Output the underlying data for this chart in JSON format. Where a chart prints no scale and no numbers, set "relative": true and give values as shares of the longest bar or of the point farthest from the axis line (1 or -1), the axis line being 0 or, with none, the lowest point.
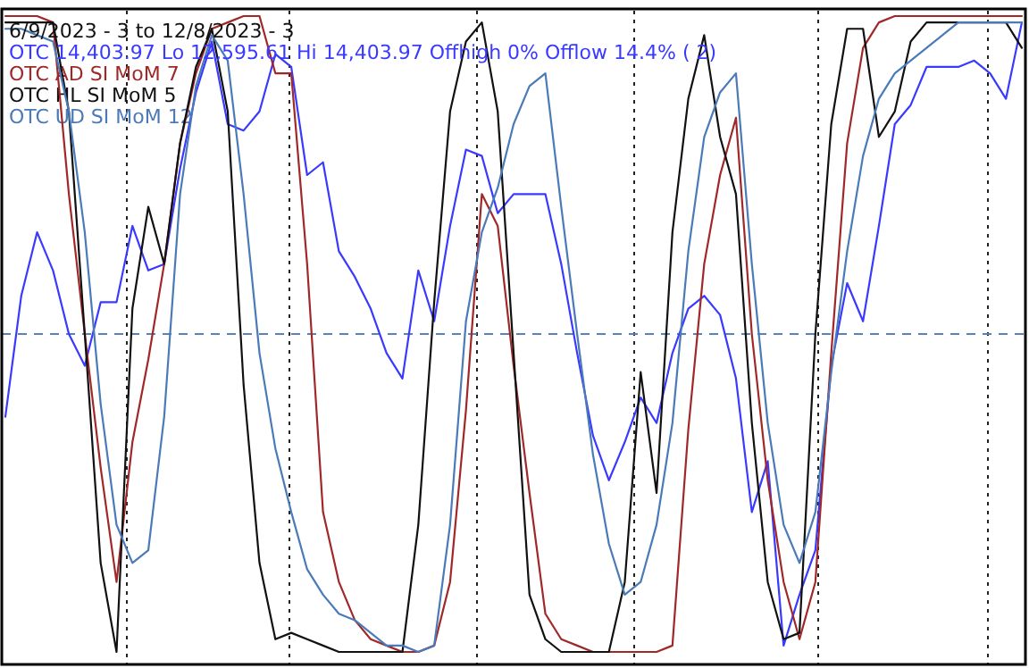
{
  "chart_data": {
    "type": "line",
    "title": "6/9/2023 - 3 to 12/8/2023 - 3",
    "relative": true,
    "legend": "top left",
    "grid": "x",
    "categories": [
      null,
      null,
      null,
      null,
      null,
      null,
      null,
      null,
      null,
      null,
      null,
      null,
      null,
      null,
      null,
      null,
      null,
      null,
      null,
      null,
      null,
      null,
      null,
      null,
      null,
      null,
      null,
      null,
      null,
      null,
      null,
      null,
      null,
      null,
      null,
      null,
      null,
      null,
      null,
      null,
      null,
      null,
      null,
      null,
      null,
      null,
      null,
      null,
      null,
      null,
      null,
      null,
      null,
      null,
      null,
      null,
      null,
      null,
      null,
      null,
      null,
      null,
      null,
      null,
      null
    ],
    "ref_lines": [
      {
        "axis": "y",
        "value": 0.5,
        "color": "#5a82b8",
        "line_style": "dashed"
      }
    ],
    "series": [
      {
        "name": "OTC 14,403.97 Lo 12,595.61 Hi 14,403.97 Offhigh 0% Offlow 14.4% ( 2)",
        "color": "#3a3aff",
        "values": [
          0.37,
          0.56,
          0.66,
          0.6,
          0.5,
          0.45,
          0.55,
          0.55,
          0.67,
          0.6,
          0.61,
          0.76,
          0.88,
          0.96,
          0.83,
          0.82,
          0.85,
          0.94,
          0.92,
          0.75,
          0.77,
          0.63,
          0.59,
          0.54,
          0.47,
          0.43,
          0.6,
          0.52,
          0.67,
          0.79,
          0.78,
          0.69,
          0.72,
          0.72,
          0.72,
          0.61,
          0.47,
          0.34,
          0.27,
          0.33,
          0.4,
          0.36,
          0.47,
          0.54,
          0.56,
          0.53,
          0.43,
          0.22,
          0.3,
          0.01,
          0.09,
          0.16,
          0.45,
          0.58,
          0.52,
          0.67,
          0.83,
          0.86,
          0.92,
          0.92,
          0.92,
          0.93,
          0.91,
          0.87,
          0.99
        ]
      },
      {
        "name": "OTC AD SI MoM 7",
        "color": "#a02828",
        "values": [
          1.0,
          1.0,
          1.0,
          0.99,
          0.72,
          0.5,
          0.29,
          0.11,
          0.33,
          0.46,
          0.61,
          0.8,
          0.91,
          0.98,
          0.99,
          1.0,
          1.0,
          0.91,
          0.91,
          0.61,
          0.22,
          0.11,
          0.05,
          0.02,
          0.01,
          0,
          0,
          0.01,
          0.11,
          0.38,
          0.72,
          0.67,
          0.45,
          0.25,
          0.06,
          0.02,
          0.01,
          0,
          0,
          0,
          0,
          0,
          0.01,
          0.35,
          0.61,
          0.75,
          0.84,
          0.5,
          0.27,
          0.11,
          0.02,
          0.11,
          0.47,
          0.8,
          0.95,
          0.99,
          1.0,
          1.0,
          1.0,
          1.0,
          1.0,
          1.0,
          1.0,
          1.0,
          1.0
        ]
      },
      {
        "name": "OTC HL SI MoM 5",
        "color": "#111111",
        "values": [
          0.99,
          0.99,
          0.99,
          0.99,
          0.85,
          0.5,
          0.14,
          0,
          0.54,
          0.7,
          0.61,
          0.8,
          0.92,
          0.98,
          0.85,
          0.42,
          0.14,
          0.02,
          0.03,
          0.02,
          0.01,
          0,
          0,
          0,
          0,
          0,
          0.2,
          0.55,
          0.85,
          0.96,
          0.99,
          0.85,
          0.47,
          0.09,
          0.02,
          0,
          0,
          0,
          0,
          0.11,
          0.44,
          0.25,
          0.66,
          0.87,
          0.97,
          0.81,
          0.72,
          0.36,
          0.11,
          0.02,
          0.03,
          0.5,
          0.83,
          0.98,
          0.98,
          0.81,
          0.85,
          0.96,
          0.99,
          0.99,
          0.99,
          0.99,
          0.99,
          0.99,
          0.95
        ]
      },
      {
        "name": "OTC UD SI MoM 12",
        "color": "#4a7ab8",
        "values": [
          0.98,
          0.98,
          0.97,
          0.96,
          0.85,
          0.66,
          0.39,
          0.2,
          0.14,
          0.16,
          0.37,
          0.72,
          0.89,
          0.97,
          0.93,
          0.72,
          0.47,
          0.32,
          0.22,
          0.13,
          0.09,
          0.06,
          0.05,
          0.03,
          0.01,
          0.01,
          0,
          0.01,
          0.2,
          0.52,
          0.66,
          0.73,
          0.83,
          0.89,
          0.91,
          0.7,
          0.5,
          0.31,
          0.17,
          0.09,
          0.11,
          0.2,
          0.36,
          0.63,
          0.81,
          0.88,
          0.91,
          0.61,
          0.36,
          0.2,
          0.14,
          0.22,
          0.44,
          0.63,
          0.78,
          0.87,
          0.91,
          0.93,
          0.95,
          0.97,
          0.99,
          0.99,
          0.99,
          0.99,
          0.99
        ]
      }
    ]
  }
}
